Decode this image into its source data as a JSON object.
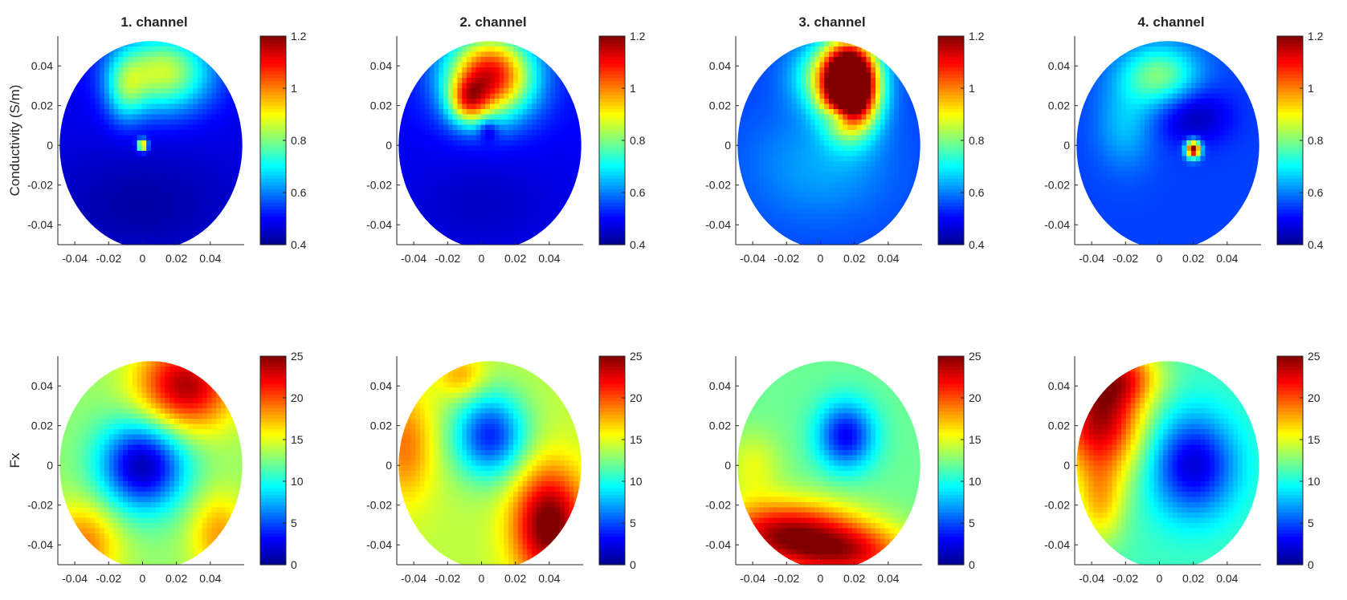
{
  "colors": {
    "colormap": [
      "#00008f",
      "#0000ff",
      "#0080ff",
      "#00ffff",
      "#80ff80",
      "#ffff00",
      "#ff8000",
      "#ff0000",
      "#800000"
    ],
    "axis": "#262626",
    "background": "#ffffff"
  },
  "chart_data": [
    {
      "type": "heatmap",
      "row": "Conductivity",
      "title": "1. channel",
      "ylabel": "Conductivity (S/m)",
      "xlabel": "",
      "xlim": [
        -0.05,
        0.06
      ],
      "ylim": [
        -0.05,
        0.055
      ],
      "xticks": [
        -0.04,
        -0.02,
        0,
        0.02,
        0.04
      ],
      "xtick_labels": [
        "-0.04",
        "-0.02",
        "0",
        "0.02",
        "0.04"
      ],
      "yticks": [
        0.04,
        0.02,
        0,
        -0.02,
        -0.04
      ],
      "ytick_labels": [
        "0.04",
        "0.02",
        "0",
        "-0.02",
        "-0.04"
      ],
      "colorbar": {
        "range": [
          0.4,
          1.2
        ],
        "ticks": [
          1.2,
          1,
          0.8,
          0.6,
          0.4
        ],
        "tick_labels": [
          "1.2",
          "1",
          "0.8",
          "0.6",
          "0.4"
        ]
      },
      "domain": "circular electrode region",
      "field": {
        "base": 0.48,
        "blobs": [
          {
            "x": 0.012,
            "y": 0.037,
            "sx": 0.02,
            "sy": 0.014,
            "a": 0.38
          },
          {
            "x": -0.01,
            "y": 0.028,
            "sx": 0.008,
            "sy": 0.012,
            "a": 0.18
          },
          {
            "x": 0.0,
            "y": 0.0,
            "sx": 0.002,
            "sy": 0.002,
            "a": 0.55
          },
          {
            "x": 0.0,
            "y": -0.03,
            "sx": 0.04,
            "sy": 0.02,
            "a": -0.06
          }
        ]
      }
    },
    {
      "type": "heatmap",
      "row": "Conductivity",
      "title": "2. channel",
      "ylabel": "",
      "xlabel": "",
      "xlim": [
        -0.05,
        0.06
      ],
      "ylim": [
        -0.05,
        0.055
      ],
      "xticks": [
        -0.04,
        -0.02,
        0,
        0.02,
        0.04
      ],
      "xtick_labels": [
        "-0.04",
        "-0.02",
        "0",
        "0.02",
        "0.04"
      ],
      "yticks": [
        0.04,
        0.02,
        0,
        -0.02,
        -0.04
      ],
      "ytick_labels": [
        "0.04",
        "0.02",
        "0",
        "-0.02",
        "-0.04"
      ],
      "colorbar": {
        "range": [
          0.4,
          1.2
        ],
        "ticks": [
          1.2,
          1,
          0.8,
          0.6,
          0.4
        ],
        "tick_labels": [
          "1.2",
          "1",
          "0.8",
          "0.6",
          "0.4"
        ]
      },
      "domain": "circular electrode region",
      "field": {
        "base": 0.5,
        "blobs": [
          {
            "x": 0.005,
            "y": 0.035,
            "sx": 0.018,
            "sy": 0.015,
            "a": 0.62
          },
          {
            "x": -0.008,
            "y": 0.022,
            "sx": 0.008,
            "sy": 0.008,
            "a": 0.3
          },
          {
            "x": 0.004,
            "y": 0.008,
            "sx": 0.004,
            "sy": 0.004,
            "a": -0.12
          },
          {
            "x": 0.0,
            "y": -0.03,
            "sx": 0.04,
            "sy": 0.02,
            "a": -0.05
          }
        ]
      }
    },
    {
      "type": "heatmap",
      "row": "Conductivity",
      "title": "3. channel",
      "ylabel": "",
      "xlabel": "",
      "xlim": [
        -0.05,
        0.06
      ],
      "ylim": [
        -0.05,
        0.055
      ],
      "xticks": [
        -0.04,
        -0.02,
        0,
        0.02,
        0.04
      ],
      "xtick_labels": [
        "-0.04",
        "-0.02",
        "0",
        "0.02",
        "0.04"
      ],
      "yticks": [
        0.04,
        0.02,
        0,
        -0.02,
        -0.04
      ],
      "ytick_labels": [
        "0.04",
        "0.02",
        "0",
        "-0.02",
        "-0.04"
      ],
      "colorbar": {
        "range": [
          0.4,
          1.2
        ],
        "ticks": [
          1.2,
          1,
          0.8,
          0.6,
          0.4
        ],
        "tick_labels": [
          "1.2",
          "1",
          "0.8",
          "0.6",
          "0.4"
        ]
      },
      "domain": "circular electrode region",
      "field": {
        "base": 0.55,
        "blobs": [
          {
            "x": 0.018,
            "y": 0.03,
            "sx": 0.011,
            "sy": 0.015,
            "a": 0.95
          },
          {
            "x": 0.005,
            "y": 0.035,
            "sx": 0.015,
            "sy": 0.012,
            "a": 0.25
          },
          {
            "x": 0.01,
            "y": 0.015,
            "sx": 0.006,
            "sy": 0.004,
            "a": -0.15
          },
          {
            "x": 0.0,
            "y": -0.01,
            "sx": 0.03,
            "sy": 0.02,
            "a": 0.08
          }
        ]
      }
    },
    {
      "type": "heatmap",
      "row": "Conductivity",
      "title": "4. channel",
      "ylabel": "",
      "xlabel": "",
      "xlim": [
        -0.05,
        0.06
      ],
      "ylim": [
        -0.05,
        0.055
      ],
      "xticks": [
        -0.04,
        -0.02,
        0,
        0.02,
        0.04
      ],
      "xtick_labels": [
        "-0.04",
        "-0.02",
        "0",
        "0.02",
        "0.04"
      ],
      "yticks": [
        0.04,
        0.02,
        0,
        -0.02,
        -0.04
      ],
      "ytick_labels": [
        "0.04",
        "0.02",
        "0",
        "-0.02",
        "-0.04"
      ],
      "colorbar": {
        "range": [
          0.4,
          1.2
        ],
        "ticks": [
          1.2,
          1,
          0.8,
          0.6,
          0.4
        ],
        "tick_labels": [
          "1.2",
          "1",
          "0.8",
          "0.6",
          "0.4"
        ]
      },
      "domain": "circular electrode region",
      "field": {
        "base": 0.55,
        "blobs": [
          {
            "x": 0.0,
            "y": 0.035,
            "sx": 0.016,
            "sy": 0.011,
            "a": 0.25
          },
          {
            "x": -0.02,
            "y": 0.01,
            "sx": 0.012,
            "sy": 0.015,
            "a": 0.1
          },
          {
            "x": 0.02,
            "y": 0.015,
            "sx": 0.015,
            "sy": 0.01,
            "a": -0.12
          },
          {
            "x": 0.02,
            "y": -0.002,
            "sx": 0.003,
            "sy": 0.003,
            "a": 0.7
          }
        ]
      }
    },
    {
      "type": "heatmap",
      "row": "Fx",
      "title": "",
      "ylabel": "Fx",
      "xlabel": "",
      "xlim": [
        -0.05,
        0.06
      ],
      "ylim": [
        -0.05,
        0.055
      ],
      "xticks": [
        -0.04,
        -0.02,
        0,
        0.02,
        0.04
      ],
      "xtick_labels": [
        "-0.04",
        "-0.02",
        "0",
        "0.02",
        "0.04"
      ],
      "yticks": [
        0.04,
        0.02,
        0,
        -0.02,
        -0.04
      ],
      "ytick_labels": [
        "0.04",
        "0.02",
        "0",
        "-0.02",
        "-0.04"
      ],
      "colorbar": {
        "range": [
          0,
          25
        ],
        "ticks": [
          25,
          20,
          15,
          10,
          5,
          0
        ],
        "tick_labels": [
          "25",
          "20",
          "15",
          "10",
          "5",
          "0"
        ]
      },
      "domain": "circular electrode region",
      "field": {
        "base": 13,
        "blobs": [
          {
            "x": 0.0,
            "y": 0.0,
            "sx": 0.018,
            "sy": 0.016,
            "a": -12
          },
          {
            "x": 0.025,
            "y": 0.04,
            "sx": 0.02,
            "sy": 0.016,
            "a": 11
          },
          {
            "x": -0.035,
            "y": -0.04,
            "sx": 0.015,
            "sy": 0.015,
            "a": 6
          },
          {
            "x": 0.045,
            "y": -0.035,
            "sx": 0.012,
            "sy": 0.015,
            "a": 5
          }
        ]
      }
    },
    {
      "type": "heatmap",
      "row": "Fx",
      "title": "",
      "ylabel": "",
      "xlabel": "",
      "xlim": [
        -0.05,
        0.06
      ],
      "ylim": [
        -0.05,
        0.055
      ],
      "xticks": [
        -0.04,
        -0.02,
        0,
        0.02,
        0.04
      ],
      "xtick_labels": [
        "-0.04",
        "-0.02",
        "0",
        "0.02",
        "0.04"
      ],
      "yticks": [
        0.04,
        0.02,
        0,
        -0.02,
        -0.04
      ],
      "ytick_labels": [
        "0.04",
        "0.02",
        "0",
        "-0.02",
        "-0.04"
      ],
      "colorbar": {
        "range": [
          0,
          25
        ],
        "ticks": [
          25,
          20,
          15,
          10,
          5,
          0
        ],
        "tick_labels": [
          "25",
          "20",
          "15",
          "10",
          "5",
          "0"
        ]
      },
      "domain": "circular electrode region",
      "field": {
        "base": 14,
        "blobs": [
          {
            "x": 0.005,
            "y": 0.015,
            "sx": 0.015,
            "sy": 0.015,
            "a": -10
          },
          {
            "x": 0.04,
            "y": -0.03,
            "sx": 0.015,
            "sy": 0.02,
            "a": 12
          },
          {
            "x": -0.045,
            "y": 0.01,
            "sx": 0.012,
            "sy": 0.02,
            "a": 5
          },
          {
            "x": -0.012,
            "y": 0.045,
            "sx": 0.01,
            "sy": 0.008,
            "a": 4
          }
        ]
      }
    },
    {
      "type": "heatmap",
      "row": "Fx",
      "title": "",
      "ylabel": "",
      "xlabel": "",
      "xlim": [
        -0.05,
        0.06
      ],
      "ylim": [
        -0.05,
        0.055
      ],
      "xticks": [
        -0.04,
        -0.02,
        0,
        0.02,
        0.04
      ],
      "xtick_labels": [
        "-0.04",
        "-0.02",
        "0",
        "0.02",
        "0.04"
      ],
      "yticks": [
        0.04,
        0.02,
        0,
        -0.02,
        -0.04
      ],
      "ytick_labels": [
        "0.04",
        "0.02",
        "0",
        "-0.02",
        "-0.04"
      ],
      "colorbar": {
        "range": [
          0,
          25
        ],
        "ticks": [
          25,
          20,
          15,
          10,
          5,
          0
        ],
        "tick_labels": [
          "25",
          "20",
          "15",
          "10",
          "5",
          "0"
        ]
      },
      "domain": "circular electrode region",
      "field": {
        "base": 12,
        "blobs": [
          {
            "x": 0.015,
            "y": 0.015,
            "sx": 0.012,
            "sy": 0.012,
            "a": -9
          },
          {
            "x": -0.02,
            "y": -0.035,
            "sx": 0.03,
            "sy": 0.012,
            "a": 12
          },
          {
            "x": 0.02,
            "y": -0.045,
            "sx": 0.025,
            "sy": 0.01,
            "a": 8
          },
          {
            "x": -0.04,
            "y": 0.0,
            "sx": 0.012,
            "sy": 0.012,
            "a": 3
          }
        ]
      }
    },
    {
      "type": "heatmap",
      "row": "Fx",
      "title": "",
      "ylabel": "",
      "xlabel": "",
      "xlim": [
        -0.05,
        0.06
      ],
      "ylim": [
        -0.05,
        0.055
      ],
      "xticks": [
        -0.04,
        -0.02,
        0,
        0.02,
        0.04
      ],
      "xtick_labels": [
        "-0.04",
        "-0.02",
        "0",
        "0.02",
        "0.04"
      ],
      "yticks": [
        0.04,
        0.02,
        0,
        -0.02,
        -0.04
      ],
      "ytick_labels": [
        "0.04",
        "0.02",
        "0",
        "-0.02",
        "-0.04"
      ],
      "colorbar": {
        "range": [
          0,
          25
        ],
        "ticks": [
          25,
          20,
          15,
          10,
          5,
          0
        ],
        "tick_labels": [
          "25",
          "20",
          "15",
          "10",
          "5",
          "0"
        ]
      },
      "domain": "circular electrode region",
      "field": {
        "base": 11,
        "blobs": [
          {
            "x": 0.02,
            "y": 0.0,
            "sx": 0.018,
            "sy": 0.018,
            "a": -9
          },
          {
            "x": -0.035,
            "y": 0.025,
            "sx": 0.018,
            "sy": 0.022,
            "a": 13
          },
          {
            "x": -0.02,
            "y": 0.045,
            "sx": 0.015,
            "sy": 0.01,
            "a": 6
          },
          {
            "x": -0.035,
            "y": -0.02,
            "sx": 0.01,
            "sy": 0.015,
            "a": 5
          }
        ]
      }
    }
  ]
}
